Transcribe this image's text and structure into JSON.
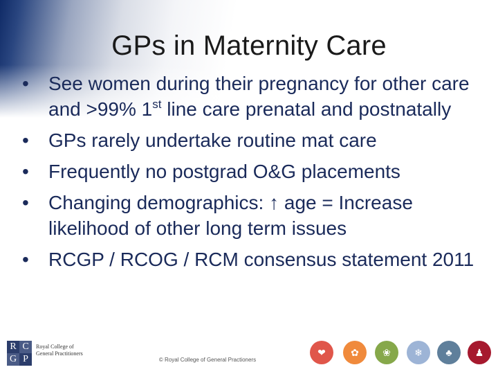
{
  "slide": {
    "title": "GPs in Maternity Care",
    "bullets": [
      {
        "pre": "See women during their pregnancy for other care and >99% 1",
        "sup": "st",
        "post": " line care prenatal and postnatally"
      },
      {
        "pre": "GPs rarely undertake routine mat care",
        "sup": "",
        "post": ""
      },
      {
        "pre": "Frequently no postgrad O&G placements",
        "sup": "",
        "post": ""
      },
      {
        "pre": "Changing demographics: ↑ age = Increase likelihood of other long term issues",
        "sup": "",
        "post": ""
      },
      {
        "pre": "RCGP / RCOG / RCM consensus statement 2011",
        "sup": "",
        "post": ""
      }
    ],
    "bullet_glyph": "•"
  },
  "footer": {
    "logo_letters": [
      "R",
      "C",
      "G",
      "P"
    ],
    "org_name": "Royal College of General Practitioners",
    "copyright": "© Royal College of General Practioners",
    "icons": [
      {
        "name": "heart-icon",
        "color": "#e0564a",
        "glyph": "❤"
      },
      {
        "name": "lotus-icon",
        "color": "#f08a3c",
        "glyph": "✿"
      },
      {
        "name": "flower-icon",
        "color": "#86a84a",
        "glyph": "❀"
      },
      {
        "name": "snowflake-icon",
        "color": "#9db4d6",
        "glyph": "❄"
      },
      {
        "name": "tree-icon",
        "color": "#5f7f9b",
        "glyph": "♣"
      },
      {
        "name": "figure-icon",
        "color": "#a6192e",
        "glyph": "♟"
      }
    ]
  }
}
